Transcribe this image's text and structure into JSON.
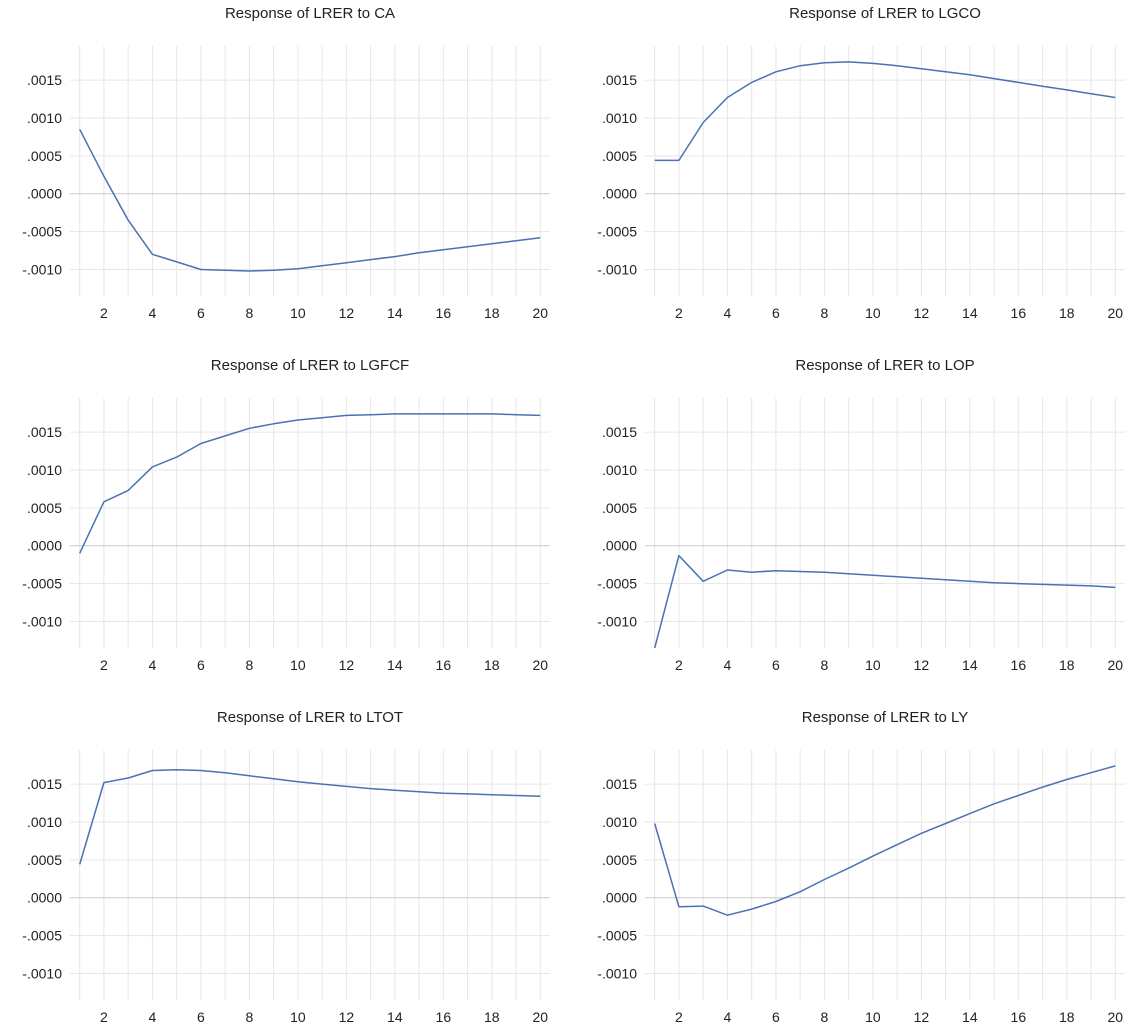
{
  "chart_data": [
    {
      "type": "line",
      "title": "Response of LRER to CA",
      "x": [
        1,
        2,
        3,
        4,
        5,
        6,
        7,
        8,
        9,
        10,
        11,
        12,
        13,
        14,
        15,
        16,
        17,
        18,
        19,
        20
      ],
      "series": [
        {
          "values": [
            0.00085,
            0.00023,
            -0.00035,
            -0.0008,
            -0.0009,
            -0.001,
            -0.00101,
            -0.00102,
            -0.00101,
            -0.00099,
            -0.00095,
            -0.00091,
            -0.00087,
            -0.00083,
            -0.00078,
            -0.00074,
            -0.0007,
            -0.00066,
            -0.00062,
            -0.00058
          ],
          "color": "#4a72b2"
        }
      ],
      "xticks": [
        2,
        4,
        6,
        8,
        10,
        12,
        14,
        16,
        18,
        20
      ],
      "yticks": [
        -0.001,
        -0.0005,
        0.0,
        0.0005,
        0.001,
        0.0015
      ],
      "ytick_labels": [
        "-.0010",
        "-.0005",
        ".0000",
        ".0005",
        ".0010",
        ".0015"
      ],
      "ylim": [
        -0.00135,
        0.00195
      ],
      "xlim": [
        0.6,
        20.4
      ],
      "grid": true
    },
    {
      "type": "line",
      "title": "Response of LRER to LGCO",
      "x": [
        1,
        2,
        3,
        4,
        5,
        6,
        7,
        8,
        9,
        10,
        11,
        12,
        13,
        14,
        15,
        16,
        17,
        18,
        19,
        20
      ],
      "series": [
        {
          "values": [
            0.00044,
            0.00044,
            0.00094,
            0.00127,
            0.00147,
            0.00161,
            0.00169,
            0.00173,
            0.00174,
            0.00172,
            0.00169,
            0.00165,
            0.00161,
            0.00157,
            0.00152,
            0.00147,
            0.00142,
            0.00137,
            0.00132,
            0.00127
          ],
          "color": "#4a72b2"
        }
      ],
      "xticks": [
        2,
        4,
        6,
        8,
        10,
        12,
        14,
        16,
        18,
        20
      ],
      "yticks": [
        -0.001,
        -0.0005,
        0.0,
        0.0005,
        0.001,
        0.0015
      ],
      "ytick_labels": [
        "-.0010",
        "-.0005",
        ".0000",
        ".0005",
        ".0010",
        ".0015"
      ],
      "ylim": [
        -0.00135,
        0.00195
      ],
      "xlim": [
        0.6,
        20.4
      ],
      "grid": true
    },
    {
      "type": "line",
      "title": "Response of LRER to LGFCF",
      "x": [
        1,
        2,
        3,
        4,
        5,
        6,
        7,
        8,
        9,
        10,
        11,
        12,
        13,
        14,
        15,
        16,
        17,
        18,
        19,
        20
      ],
      "series": [
        {
          "values": [
            -0.0001,
            0.00058,
            0.00073,
            0.00104,
            0.00117,
            0.00135,
            0.00145,
            0.00155,
            0.00161,
            0.00166,
            0.00169,
            0.00172,
            0.00173,
            0.00174,
            0.00174,
            0.00174,
            0.00174,
            0.00174,
            0.00173,
            0.00172
          ],
          "color": "#4a72b2"
        }
      ],
      "xticks": [
        2,
        4,
        6,
        8,
        10,
        12,
        14,
        16,
        18,
        20
      ],
      "yticks": [
        -0.001,
        -0.0005,
        0.0,
        0.0005,
        0.001,
        0.0015
      ],
      "ytick_labels": [
        "-.0010",
        "-.0005",
        ".0000",
        ".0005",
        ".0010",
        ".0015"
      ],
      "ylim": [
        -0.00135,
        0.00195
      ],
      "xlim": [
        0.6,
        20.4
      ],
      "grid": true
    },
    {
      "type": "line",
      "title": "Response of LRER to LOP",
      "x": [
        1,
        2,
        3,
        4,
        5,
        6,
        7,
        8,
        9,
        10,
        11,
        12,
        13,
        14,
        15,
        16,
        17,
        18,
        19,
        20
      ],
      "series": [
        {
          "values": [
            -0.00135,
            -0.00013,
            -0.00047,
            -0.00032,
            -0.00035,
            -0.00033,
            -0.00034,
            -0.00035,
            -0.00037,
            -0.00039,
            -0.00041,
            -0.00043,
            -0.00045,
            -0.00047,
            -0.00049,
            -0.0005,
            -0.00051,
            -0.00052,
            -0.00053,
            -0.00055
          ],
          "color": "#4a72b2"
        }
      ],
      "xticks": [
        2,
        4,
        6,
        8,
        10,
        12,
        14,
        16,
        18,
        20
      ],
      "yticks": [
        -0.001,
        -0.0005,
        0.0,
        0.0005,
        0.001,
        0.0015
      ],
      "ytick_labels": [
        "-.0010",
        "-.0005",
        ".0000",
        ".0005",
        ".0010",
        ".0015"
      ],
      "ylim": [
        -0.00135,
        0.00195
      ],
      "xlim": [
        0.6,
        20.4
      ],
      "grid": true
    },
    {
      "type": "line",
      "title": "Response of LRER to LTOT",
      "x": [
        1,
        2,
        3,
        4,
        5,
        6,
        7,
        8,
        9,
        10,
        11,
        12,
        13,
        14,
        15,
        16,
        17,
        18,
        19,
        20
      ],
      "series": [
        {
          "values": [
            0.00044,
            0.00152,
            0.00158,
            0.00168,
            0.00169,
            0.00168,
            0.00165,
            0.00161,
            0.00157,
            0.00153,
            0.0015,
            0.00147,
            0.00144,
            0.00142,
            0.0014,
            0.00138,
            0.00137,
            0.00136,
            0.00135,
            0.00134
          ],
          "color": "#4a72b2"
        }
      ],
      "xticks": [
        2,
        4,
        6,
        8,
        10,
        12,
        14,
        16,
        18,
        20
      ],
      "yticks": [
        -0.001,
        -0.0005,
        0.0,
        0.0005,
        0.001,
        0.0015
      ],
      "ytick_labels": [
        "-.0010",
        "-.0005",
        ".0000",
        ".0005",
        ".0010",
        ".0015"
      ],
      "ylim": [
        -0.00135,
        0.00195
      ],
      "xlim": [
        0.6,
        20.4
      ],
      "grid": true
    },
    {
      "type": "line",
      "title": "Response of LRER to LY",
      "x": [
        1,
        2,
        3,
        4,
        5,
        6,
        7,
        8,
        9,
        10,
        11,
        12,
        13,
        14,
        15,
        16,
        17,
        18,
        19,
        20
      ],
      "series": [
        {
          "values": [
            0.00098,
            -0.00012,
            -0.00011,
            -0.00023,
            -0.00015,
            -5e-05,
            8e-05,
            0.00024,
            0.00039,
            0.00055,
            0.0007,
            0.00085,
            0.00098,
            0.00111,
            0.00124,
            0.00135,
            0.00146,
            0.00156,
            0.00165,
            0.00174
          ],
          "color": "#4a72b2"
        }
      ],
      "xticks": [
        2,
        4,
        6,
        8,
        10,
        12,
        14,
        16,
        18,
        20
      ],
      "yticks": [
        -0.001,
        -0.0005,
        0.0,
        0.0005,
        0.001,
        0.0015
      ],
      "ytick_labels": [
        "-.0010",
        "-.0005",
        ".0000",
        ".0005",
        ".0010",
        ".0015"
      ],
      "ylim": [
        -0.00135,
        0.00195
      ],
      "xlim": [
        0.6,
        20.4
      ],
      "grid": true
    }
  ]
}
